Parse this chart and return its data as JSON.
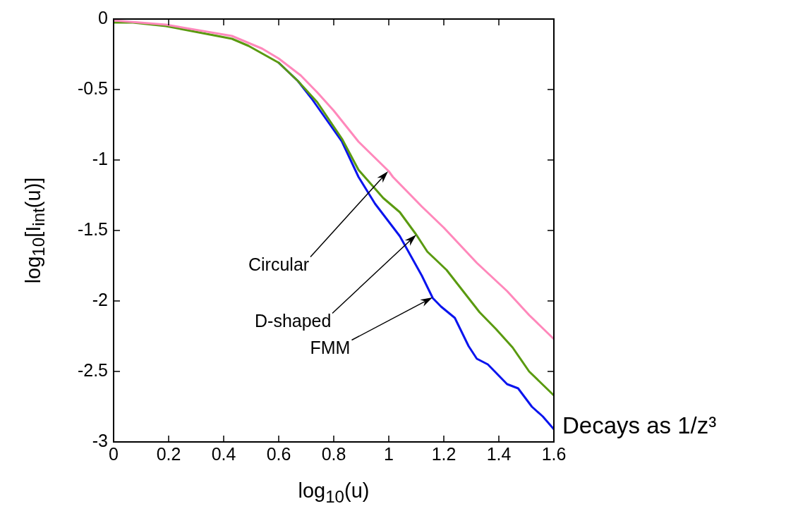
{
  "chart_data": {
    "type": "line",
    "xlabel": "log$_{10}$(u)",
    "ylabel": "log$_{10}$[I$_{int}$(u)]",
    "xlim": [
      0,
      1.6
    ],
    "xticks": [
      0,
      0.2,
      0.4,
      0.6,
      0.8,
      1,
      1.2,
      1.4,
      1.6
    ],
    "ylim": [
      -3,
      0
    ],
    "yticks": [
      -3,
      -2.5,
      -2,
      -1.5,
      -1,
      -0.5,
      0
    ],
    "grid": false,
    "legend": false,
    "marker": "none",
    "line_style": "solid",
    "series": [
      {
        "color": "#ff88bb",
        "x": [
          0,
          0.19,
          0.43,
          0.54,
          0.6,
          0.68,
          0.74,
          0.8,
          0.89,
          1.0,
          1.015,
          1.12,
          1.2,
          1.32,
          1.43,
          1.51,
          1.6
        ],
        "values": [
          -0.01,
          -0.04,
          -0.12,
          -0.21,
          -0.28,
          -0.4,
          -0.52,
          -0.65,
          -0.87,
          -1.08,
          -1.12,
          -1.33,
          -1.48,
          -1.73,
          -1.93,
          -2.1,
          -2.27
        ]
      },
      {
        "color": "#5a9a10",
        "x": [
          0,
          0.07,
          0.19,
          0.43,
          0.49,
          0.6,
          0.67,
          0.74,
          0.83,
          0.89,
          0.98,
          1.04,
          1.1,
          1.14,
          1.21,
          1.25,
          1.33,
          1.39,
          1.45,
          1.51,
          1.6
        ],
        "values": [
          -0.025,
          -0.025,
          -0.05,
          -0.14,
          -0.19,
          -0.31,
          -0.44,
          -0.59,
          -0.85,
          -1.07,
          -1.27,
          -1.37,
          -1.53,
          -1.65,
          -1.78,
          -1.88,
          -2.08,
          -2.2,
          -2.33,
          -2.5,
          -2.67
        ]
      },
      {
        "color": "#0a14ee",
        "x": [
          0.6,
          0.67,
          0.72,
          0.83,
          0.89,
          0.95,
          1.04,
          1.12,
          1.16,
          1.19,
          1.24,
          1.29,
          1.32,
          1.36,
          1.43,
          1.47,
          1.52,
          1.56,
          1.6
        ],
        "values": [
          -0.31,
          -0.44,
          -0.565,
          -0.87,
          -1.12,
          -1.31,
          -1.54,
          -1.82,
          -1.98,
          -2.04,
          -2.12,
          -2.32,
          -2.41,
          -2.45,
          -2.59,
          -2.62,
          -2.75,
          -2.82,
          -2.91
        ]
      }
    ],
    "annotations": [
      "Circular",
      "D-shaped",
      "FMM",
      "Decays as 1/z³"
    ]
  }
}
